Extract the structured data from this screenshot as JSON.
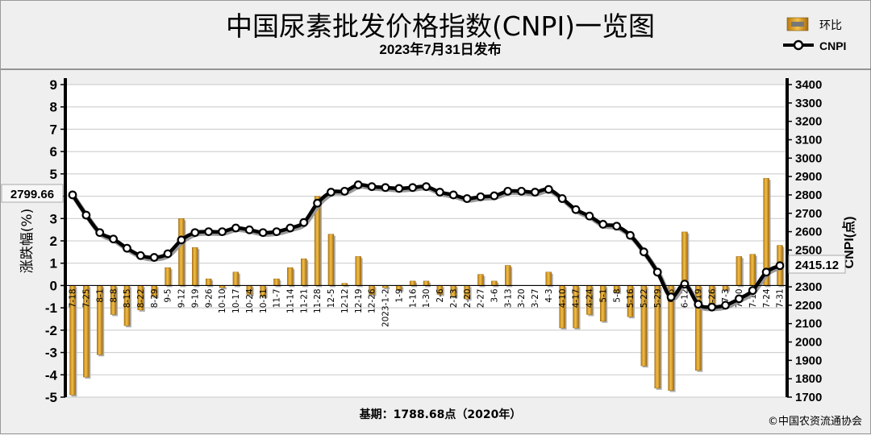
{
  "chart_data": {
    "type": "bar+line",
    "title": "中国尿素批发价格指数(CNPI)一览图",
    "subtitle": "2023年7月31日发布",
    "ylabel_left": "涨跌幅(%)",
    "ylabel_right": "CNPI(点)",
    "ylim_left": [
      -5,
      9
    ],
    "ylim_right": [
      1700,
      3400
    ],
    "yticks_left": [
      9,
      8,
      7,
      6,
      5,
      4,
      3,
      2,
      1,
      0,
      -1,
      -2,
      -3,
      -4,
      -5
    ],
    "yticks_right": [
      3400,
      3300,
      3200,
      3100,
      3000,
      2900,
      2800,
      2700,
      2600,
      2500,
      2400,
      2300,
      2200,
      2100,
      2000,
      1900,
      1800,
      1700
    ],
    "grid": true,
    "legend_position": "top-right",
    "categories": [
      "7-18",
      "7-25",
      "8-1",
      "8-8",
      "8-15",
      "8-22",
      "8-29",
      "9-5",
      "9-12",
      "9-19",
      "9-26",
      "10-10",
      "10-17",
      "10-24",
      "10-31",
      "11-7",
      "11-14",
      "11-21",
      "11-28",
      "12-5",
      "12-12",
      "12-19",
      "12-26",
      "2023-1-2",
      "1-9",
      "1-16",
      "1-30",
      "2-6",
      "2-13",
      "2-20",
      "2-27",
      "3-6",
      "3-13",
      "3-20",
      "3-27",
      "4-3",
      "4-10",
      "4-17",
      "4-24",
      "5-1",
      "5-8",
      "5-16",
      "5-22",
      "5-29",
      "6-5",
      "6-12",
      "6-19",
      "6-26",
      "7-3",
      "7-10",
      "7-17",
      "7-24",
      "7-31"
    ],
    "series": [
      {
        "name": "环比",
        "type": "bar",
        "color": "#e0a020",
        "values": [
          -4.9,
          -4.1,
          -3.1,
          -1.3,
          -1.8,
          -1.1,
          -0.5,
          0.8,
          3.0,
          1.7,
          0.3,
          -0.1,
          0.6,
          -0.4,
          -0.5,
          0.3,
          0.8,
          1.2,
          4.0,
          2.3,
          0.1,
          1.3,
          -0.4,
          -0.1,
          -0.2,
          0.2,
          0.2,
          -0.4,
          -0.5,
          -0.6,
          0.5,
          0.2,
          0.9,
          0.0,
          0.0,
          0.6,
          -1.9,
          -1.9,
          -1.3,
          -1.6,
          -0.3,
          -1.4,
          -3.6,
          -4.6,
          -4.7,
          2.4,
          -3.8,
          -1.0,
          -0.2,
          1.3,
          1.4,
          4.8,
          1.8
        ]
      },
      {
        "name": "CNPI",
        "type": "line",
        "color": "#000000",
        "values": [
          2800,
          2690,
          2595,
          2560,
          2510,
          2470,
          2460,
          2480,
          2555,
          2595,
          2600,
          2600,
          2620,
          2610,
          2595,
          2600,
          2620,
          2650,
          2755,
          2815,
          2820,
          2855,
          2845,
          2840,
          2835,
          2840,
          2845,
          2815,
          2800,
          2780,
          2790,
          2795,
          2820,
          2820,
          2815,
          2830,
          2780,
          2720,
          2685,
          2640,
          2630,
          2580,
          2490,
          2380,
          2245,
          2315,
          2205,
          2190,
          2200,
          2235,
          2280,
          2380,
          2415.12
        ]
      }
    ],
    "annotations": {
      "first_value": "2799.66",
      "last_value": "2415.12"
    },
    "footer": {
      "base": "基期：1788.68点（2020年）",
      "source": "©中国农资流通协会"
    }
  }
}
